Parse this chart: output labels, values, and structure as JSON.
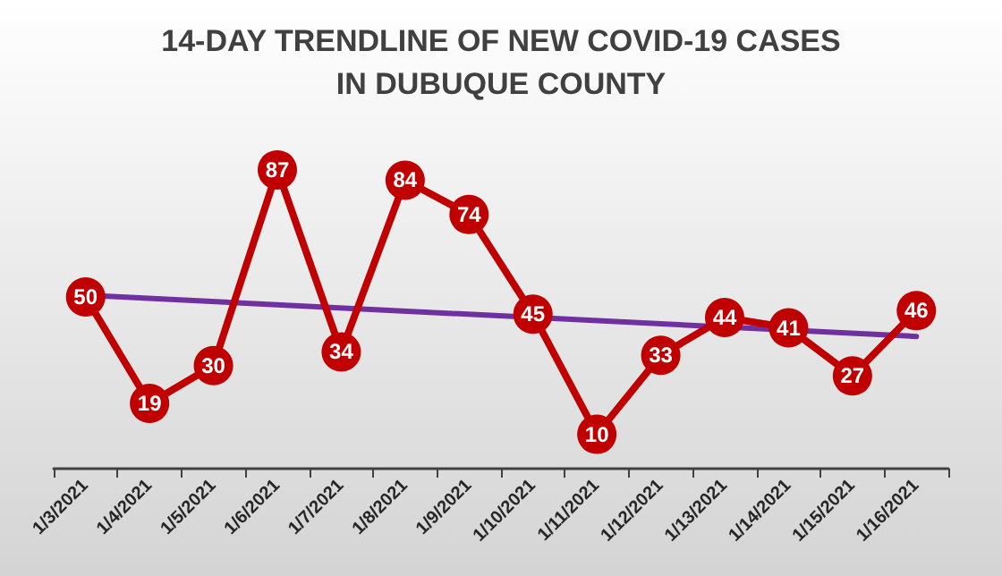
{
  "chart_data": {
    "type": "line",
    "title": "14-DAY TRENDLINE OF NEW COVID-19 CASES\nIN DUBUQUE COUNTY",
    "categories": [
      "1/3/2021",
      "1/4/2021",
      "1/5/2021",
      "1/6/2021",
      "1/7/2021",
      "1/8/2021",
      "1/9/2021",
      "1/10/2021",
      "1/11/2021",
      "1/12/2021",
      "1/13/2021",
      "1/14/2021",
      "1/15/2021",
      "1/16/2021"
    ],
    "series": [
      {
        "color": "#c00000",
        "values": [
          50,
          19,
          30,
          87,
          34,
          84,
          74,
          45,
          10,
          33,
          44,
          41,
          27,
          46
        ],
        "value_labels": [
          "50",
          "19",
          "30",
          "87",
          "34",
          "84",
          "74",
          "45",
          "10",
          "33",
          "44",
          "41",
          "27",
          "46"
        ]
      },
      {
        "type": "line",
        "color": "#7030a0",
        "x": [
          "1/3/2021",
          "1/16/2021"
        ],
        "values": [
          50.5,
          38.5
        ],
        "marker": "none"
      }
    ],
    "marker": "circle",
    "line_style": "solid",
    "grid": false
  }
}
